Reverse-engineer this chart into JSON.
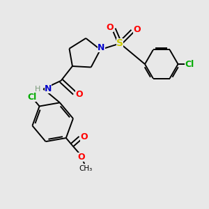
{
  "background_color": "#e8e8e8",
  "bond_color": "#000000",
  "atom_colors": {
    "N": "#0000cc",
    "O": "#ff0000",
    "S": "#cccc00",
    "Cl": "#00aa00",
    "H": "#7a9a7a",
    "C": "#000000"
  },
  "figsize": [
    3.0,
    3.0
  ],
  "dpi": 100,
  "lw": 1.4
}
